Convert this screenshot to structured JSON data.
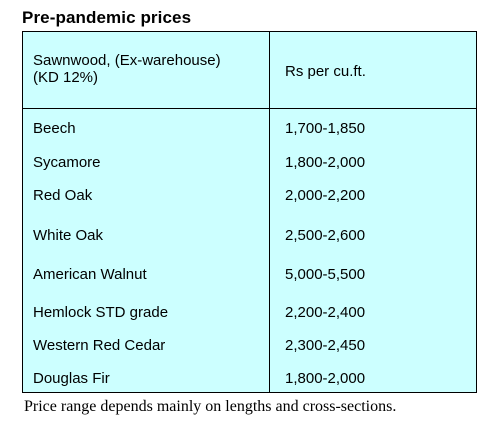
{
  "title": "Pre-pandemic prices",
  "table": {
    "header": {
      "col1_line1": "Sawnwood, (Ex-warehouse)",
      "col1_line2": "(KD 12%)",
      "col2": "Rs per cu.ft."
    },
    "rows": [
      {
        "species": "Beech",
        "price": "1,700-1,850"
      },
      {
        "species": "Sycamore",
        "price": "1,800-2,000"
      },
      {
        "species": "Red Oak",
        "price": "2,000-2,200"
      },
      {
        "species": "White Oak",
        "price": "2,500-2,600"
      },
      {
        "species": "American Walnut",
        "price": "5,000-5,500"
      },
      {
        "species": "Hemlock STD grade",
        "price": "2,200-2,400"
      },
      {
        "species": "Western Red Cedar",
        "price": "2,300-2,450"
      },
      {
        "species": "Douglas Fir",
        "price": "1,800-2,000"
      }
    ]
  },
  "note": "Price range depends mainly on lengths and cross-sections."
}
